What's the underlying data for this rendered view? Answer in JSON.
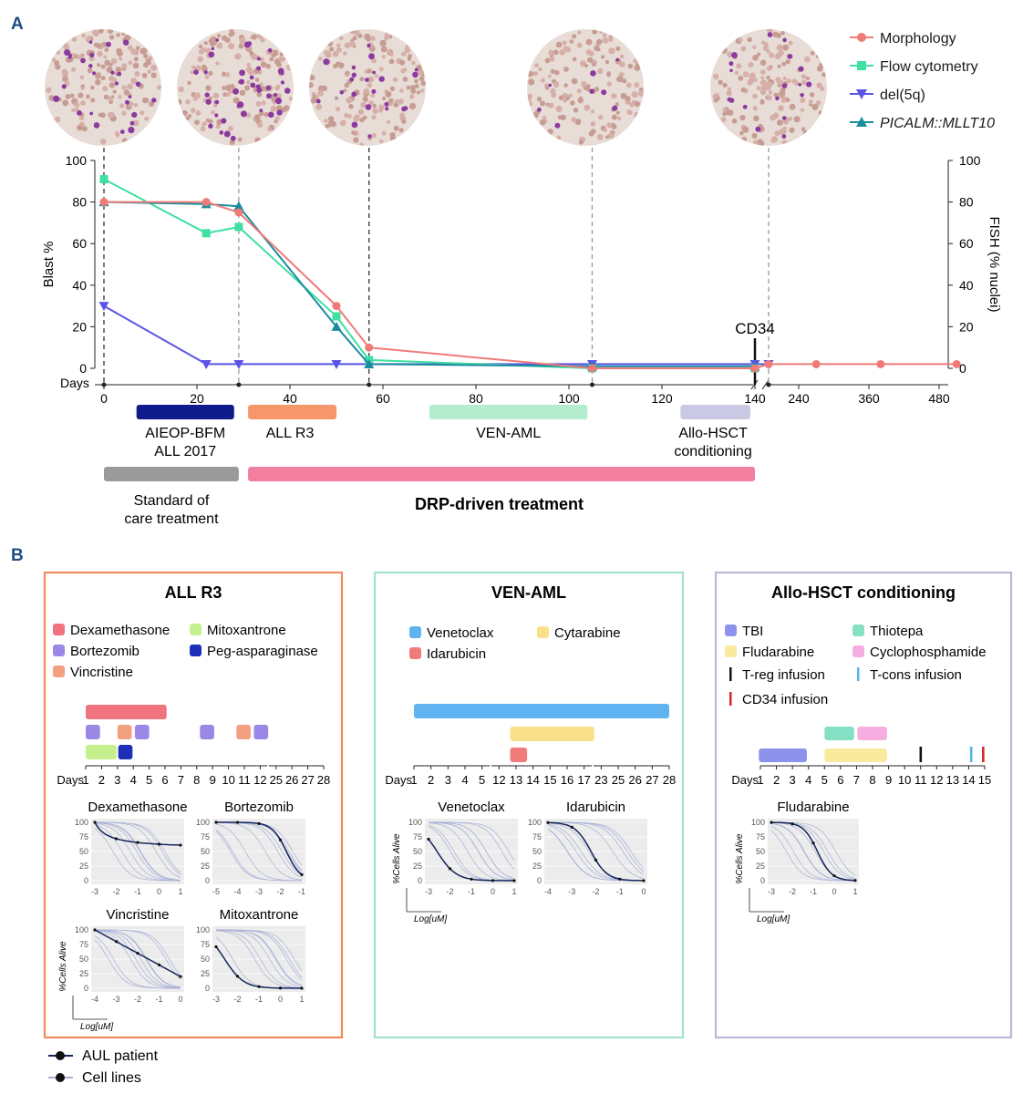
{
  "panel_labels": {
    "a": "A",
    "b": "B"
  },
  "colors": {
    "morphology": "#ef7b78",
    "flow": "#3fe0a1",
    "del5q": "#5a55e6",
    "picalm": "#1b8c9e",
    "aieop_bar": "#101c8c",
    "allr3_bar": "#f6966a",
    "venaml_bar": "#b4ecd0",
    "hsct_bar": "#c9c9e4",
    "soc_bar": "#9a9a9a",
    "drp_bar": "#f27ea0",
    "panel_allr3_border": "#f28a5e",
    "panel_venaml_border": "#a3e3c6",
    "panel_hsct_border": "#b9b8d8",
    "dexamethasone": "#f07380",
    "bortezomib": "#9b88e6",
    "vincristine": "#f1a080",
    "mitoxantrone": "#c6f08e",
    "pegasparaginase": "#1c2fb8",
    "venetoclax": "#5fb3f0",
    "cytarabine": "#fbe08a",
    "idarubicin": "#f07b78",
    "tbi": "#8d93ec",
    "fludarabine": "#faea9e",
    "thiotepa": "#86e0c4",
    "cyclophosphamide": "#f6aee1",
    "treg": "#111111",
    "tcons": "#56b4e8",
    "cd34": "#d62828",
    "patient_curve": "#14275c",
    "cellline_curve": "#a7b0d6"
  },
  "legend_a": [
    {
      "label": "Morphology",
      "marker": "circle"
    },
    {
      "label": "Flow cytometry",
      "marker": "square"
    },
    {
      "label": "del(5q)",
      "marker": "triangle-down"
    },
    {
      "label": "PICALM::MLLT10",
      "marker": "triangle-up",
      "italic": true
    }
  ],
  "micrograph_icons": [
    "blood-smear-day0",
    "blood-smear-day22",
    "blood-smear-day57",
    "blood-smear-day105",
    "blood-smear-day180"
  ],
  "timeline_labels": {
    "aieop": [
      "AIEOP-BFM",
      "ALL 2017"
    ],
    "allr3": "ALL R3",
    "venaml": "VEN-AML",
    "hsct": [
      "Allo-HSCT",
      "conditioning"
    ],
    "soc": [
      "Standard of",
      "care",
      "treatment"
    ],
    "drp": "DRP-driven  treatment",
    "cd34": "CD34"
  },
  "chart_data": [
    {
      "type": "line",
      "xlabel": "Days",
      "ylabel": "Blast %",
      "ylabel_right": "FISH (% nuclei)",
      "ylim": [
        0,
        100
      ],
      "yticks": [
        0,
        20,
        40,
        60,
        80,
        100
      ],
      "xticks": [
        "0",
        "20",
        "40",
        "60",
        "80",
        "100",
        "120",
        "140",
        "240",
        "360",
        "480"
      ],
      "x_axis_break_after": 140,
      "series": [
        {
          "name": "Morphology",
          "x": [
            0,
            22,
            29,
            50,
            57,
            105,
            140,
            180,
            270,
            380,
            510
          ],
          "y": [
            80,
            80,
            75,
            30,
            10,
            0,
            0,
            2,
            2,
            2,
            2
          ]
        },
        {
          "name": "Flow cytometry",
          "x": [
            0,
            22,
            29,
            50,
            57,
            105,
            140
          ],
          "y": [
            91,
            65,
            68,
            25,
            4,
            0,
            0
          ]
        },
        {
          "name": "del(5q)",
          "x": [
            0,
            22,
            29,
            50,
            57,
            105,
            140,
            180
          ],
          "y": [
            30,
            2,
            2,
            2,
            2,
            2,
            2,
            2
          ]
        },
        {
          "name": "PICALM::MLLT10",
          "x": [
            0,
            22,
            29,
            50,
            57,
            105,
            140
          ],
          "y": [
            80,
            79,
            78,
            20,
            2,
            1,
            1
          ]
        }
      ],
      "sample_days": [
        0,
        29,
        57,
        105,
        180
      ],
      "cd34_day": 140,
      "treatment_bars": [
        {
          "label": "AIEOP-BFM ALL 2017",
          "start": 7,
          "end": 28
        },
        {
          "label": "ALL R3",
          "start": 31,
          "end": 50
        },
        {
          "label": "VEN-AML",
          "start": 70,
          "end": 104
        },
        {
          "label": "Allo-HSCT conditioning",
          "start": 124,
          "end": 139
        },
        {
          "label": "Standard of care treatment",
          "start": 0,
          "end": 29
        },
        {
          "label": "DRP-driven treatment",
          "start": 31,
          "end": 140
        }
      ]
    },
    {
      "type": "line",
      "title": "Dexamethasone",
      "xticks": [
        -3,
        -2,
        -1,
        0,
        1
      ],
      "yticks": [
        0,
        25,
        50,
        75,
        100
      ]
    },
    {
      "type": "line",
      "title": "Bortezomib",
      "xticks": [
        -5,
        -4,
        -3,
        -2,
        -1
      ],
      "yticks": [
        0,
        25,
        50,
        75,
        100
      ]
    },
    {
      "type": "line",
      "title": "Vincristine",
      "xticks": [
        -4,
        -3,
        -2,
        -1,
        0
      ],
      "yticks": [
        0,
        25,
        50,
        75,
        100
      ],
      "xlabel": "Log[uM]",
      "ylabel": "%Cells Alive"
    },
    {
      "type": "line",
      "title": "Mitoxantrone",
      "xticks": [
        -3,
        -2,
        -1,
        0,
        1
      ],
      "yticks": [
        0,
        25,
        50,
        75,
        100
      ]
    },
    {
      "type": "line",
      "title": "Venetoclax",
      "xticks": [
        -3,
        -2,
        -1,
        0,
        1
      ],
      "yticks": [
        0,
        25,
        50,
        75,
        100
      ],
      "xlabel": "Log[uM]",
      "ylabel": "%Cells Alive"
    },
    {
      "type": "line",
      "title": "Idarubicin",
      "xticks": [
        -4,
        -3,
        -2,
        -1,
        0
      ],
      "yticks": [
        0,
        25,
        50,
        75,
        100
      ]
    },
    {
      "type": "line",
      "title": "Fludarabine",
      "xticks": [
        -3,
        -2,
        -1,
        0,
        1
      ],
      "yticks": [
        0,
        25,
        50,
        75,
        100
      ],
      "xlabel": "Log[uM]",
      "ylabel": "%Cells Alive"
    }
  ],
  "panels_b": [
    {
      "title": "ALL R3",
      "legend": [
        {
          "label": "Dexamethasone",
          "color": "dexamethasone"
        },
        {
          "label": "Mitoxantrone",
          "color": "mitoxantrone"
        },
        {
          "label": "Bortezomib",
          "color": "bortezomib"
        },
        {
          "label": "Peg-asparaginase",
          "color": "pegasparaginase"
        },
        {
          "label": "Vincristine",
          "color": "vincristine"
        }
      ],
      "days_label": "Days",
      "day_ticks": [
        "1",
        "2",
        "3",
        "4",
        "5",
        "6",
        "7",
        "8",
        "9",
        "10",
        "11",
        "12",
        "25",
        "26",
        "27",
        "28"
      ]
    },
    {
      "title": "VEN-AML",
      "legend": [
        {
          "label": "Venetoclax",
          "color": "venetoclax"
        },
        {
          "label": "Cytarabine",
          "color": "cytarabine"
        },
        {
          "label": "Idarubicin",
          "color": "idarubicin"
        }
      ],
      "days_label": "Days",
      "day_ticks": [
        "1",
        "2",
        "3",
        "4",
        "5",
        "12",
        "13",
        "14",
        "15",
        "16",
        "17",
        "23",
        "25",
        "26",
        "27",
        "28"
      ]
    },
    {
      "title": "Allo-HSCT  conditioning",
      "legend": [
        {
          "label": "TBI",
          "color": "tbi"
        },
        {
          "label": "Thiotepa",
          "color": "thiotepa"
        },
        {
          "label": "Fludarabine",
          "color": "fludarabine"
        },
        {
          "label": "Cyclophosphamide",
          "color": "cyclophosphamide"
        },
        {
          "label": "T-reg infusion",
          "color": "treg"
        },
        {
          "label": "T-cons infusion",
          "color": "tcons"
        },
        {
          "label": "CD34 infusion",
          "color": "cd34"
        }
      ],
      "days_label": "Days",
      "day_ticks": [
        "1",
        "2",
        "3",
        "4",
        "5",
        "6",
        "7",
        "8",
        "9",
        "10",
        "11",
        "12",
        "13",
        "14",
        "15"
      ]
    }
  ],
  "bottom_legend": [
    {
      "label": "AUL patient",
      "color": "patient_curve"
    },
    {
      "label": "Cell lines",
      "color": "cellline_curve"
    }
  ]
}
